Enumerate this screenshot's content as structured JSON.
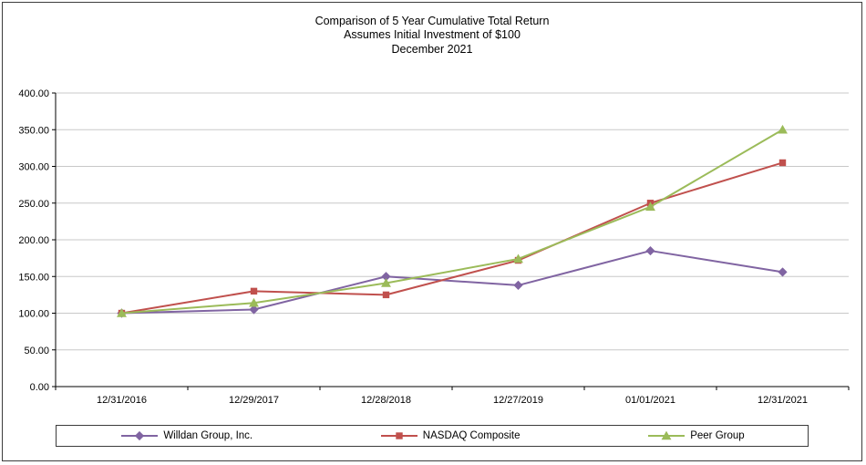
{
  "chart_data": {
    "type": "line",
    "title": "Comparison of 5 Year Cumulative Total Return",
    "subtitle": "Assumes Initial Investment of $100",
    "date_label": "December 2021",
    "categories": [
      "12/31/2016",
      "12/29/2017",
      "12/28/2018",
      "12/27/2019",
      "01/01/2021",
      "12/31/2021"
    ],
    "series": [
      {
        "name": "Willdan Group, Inc.",
        "color": "#8064A2",
        "marker": "diamond",
        "values": [
          100.0,
          105.0,
          150.0,
          138.0,
          185.0,
          156.0
        ]
      },
      {
        "name": "NASDAQ Composite",
        "color": "#C0504D",
        "marker": "square",
        "values": [
          100.0,
          130.0,
          125.0,
          172.0,
          250.0,
          305.0
        ]
      },
      {
        "name": "Peer Group",
        "color": "#9BBB59",
        "marker": "triangle",
        "values": [
          100.0,
          114.0,
          141.0,
          174.0,
          245.0,
          350.0
        ]
      }
    ],
    "ylim": [
      0,
      400
    ],
    "ytick_step": 50,
    "ytick_decimals": 2,
    "grid": true,
    "legend_position": "bottom",
    "grid_color": "#c8c8c8",
    "axis_color": "#000000"
  }
}
